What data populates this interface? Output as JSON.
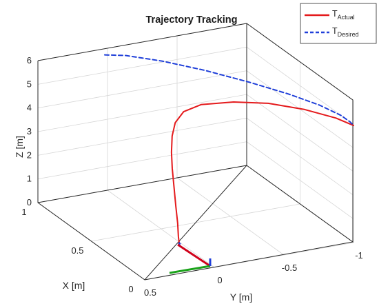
{
  "chart_data": {
    "type": "line",
    "title": "Trajectory Tracking",
    "xlabel": "X [m]",
    "ylabel": "Y [m]",
    "zlabel": "Z [m]",
    "xlim": [
      0,
      1
    ],
    "ylim": [
      -1,
      0.5
    ],
    "zlim": [
      0,
      6
    ],
    "x_ticks": [
      "0",
      "0.5",
      "1"
    ],
    "y_ticks": [
      "0.5",
      "0",
      "-0.5",
      "-1"
    ],
    "z_ticks": [
      "0",
      "1",
      "2",
      "3",
      "4",
      "5",
      "6"
    ],
    "grid": true,
    "legend_position": "top-right",
    "series": [
      {
        "name": "T",
        "subscript": "Actual",
        "color": "#e41a1c",
        "line_style": "solid",
        "x": [
          0.3,
          0.31,
          0.33,
          0.36,
          0.39,
          0.42,
          0.44,
          0.46,
          0.47,
          0.47,
          0.45,
          0.38,
          0.29,
          0.17,
          0.06,
          0.0
        ],
        "y": [
          0.02,
          0.02,
          0.01,
          0.0,
          -0.01,
          -0.02,
          -0.03,
          -0.05,
          -0.08,
          -0.14,
          -0.25,
          -0.43,
          -0.61,
          -0.78,
          -0.92,
          -1.0
        ],
        "z": [
          0.0,
          0.3,
          0.8,
          1.4,
          2.1,
          2.8,
          3.4,
          4.0,
          4.5,
          4.9,
          5.15,
          5.3,
          5.35,
          5.3,
          5.15,
          4.95
        ]
      },
      {
        "name": "T",
        "subscript": "Desired",
        "color": "#1f3fd9",
        "line_style": "dashed",
        "x": [
          1.0,
          0.96,
          0.85,
          0.7,
          0.52,
          0.35,
          0.2,
          0.08,
          0.02,
          0.0
        ],
        "y": [
          0.02,
          -0.1,
          -0.28,
          -0.47,
          -0.65,
          -0.8,
          -0.91,
          -0.97,
          -0.99,
          -1.0
        ],
        "z": [
          5.74,
          5.72,
          5.65,
          5.55,
          5.45,
          5.35,
          5.25,
          5.15,
          5.05,
          4.95
        ]
      }
    ],
    "start_marker": {
      "symbol": "*",
      "x": 0.3,
      "y": 0.02,
      "z": 0.0
    }
  }
}
